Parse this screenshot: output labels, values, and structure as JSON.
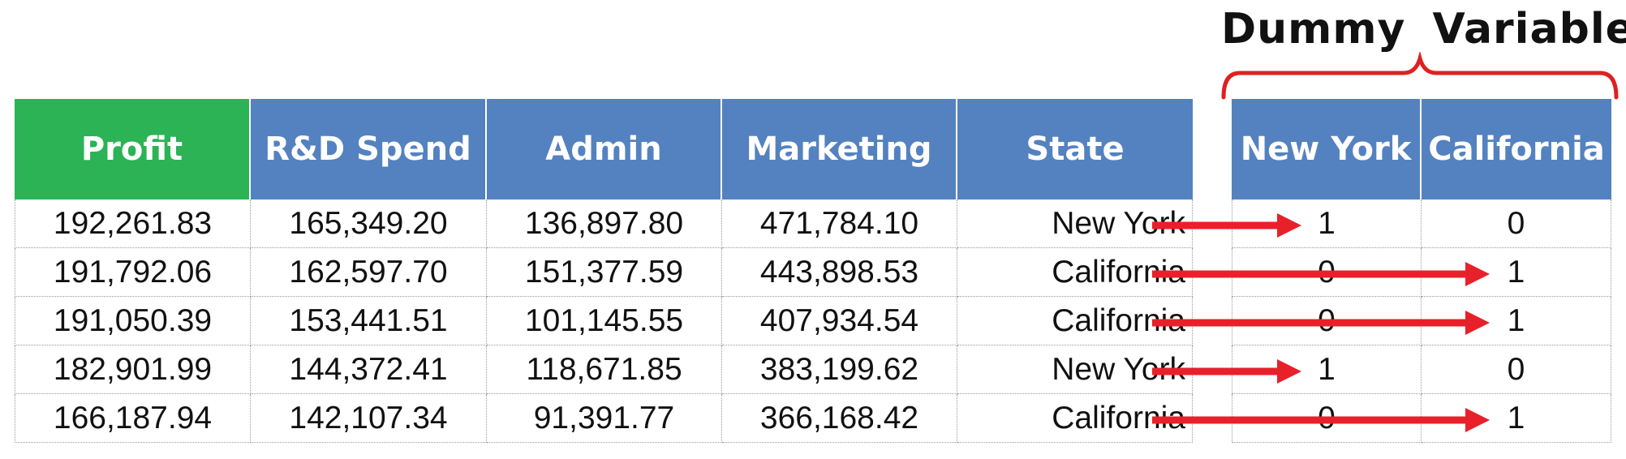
{
  "title": "Dummy Variables",
  "columns": [
    "Profit",
    "R&D Spend",
    "Admin",
    "Marketing",
    "State"
  ],
  "dummy_columns": [
    "New York",
    "California"
  ],
  "rows": [
    {
      "profit": "192,261.83",
      "rd": "165,349.20",
      "admin": "136,897.80",
      "marketing": "471,784.10",
      "state": "New York",
      "ny": "1",
      "ca": "0"
    },
    {
      "profit": "191,792.06",
      "rd": "162,597.70",
      "admin": "151,377.59",
      "marketing": "443,898.53",
      "state": "California",
      "ny": "0",
      "ca": "1"
    },
    {
      "profit": "191,050.39",
      "rd": "153,441.51",
      "admin": "101,145.55",
      "marketing": "407,934.54",
      "state": "California",
      "ny": "0",
      "ca": "1"
    },
    {
      "profit": "182,901.99",
      "rd": "144,372.41",
      "admin": "118,671.85",
      "marketing": "383,199.62",
      "state": "New York",
      "ny": "1",
      "ca": "0"
    },
    {
      "profit": "166,187.94",
      "rd": "142,107.34",
      "admin": "91,391.77",
      "marketing": "366,168.42",
      "state": "California",
      "ny": "0",
      "ca": "1"
    }
  ],
  "colors": {
    "profit_header": "#2bb355",
    "header": "#5482c0",
    "arrow": "#e8202a",
    "brace": "#e02020"
  }
}
